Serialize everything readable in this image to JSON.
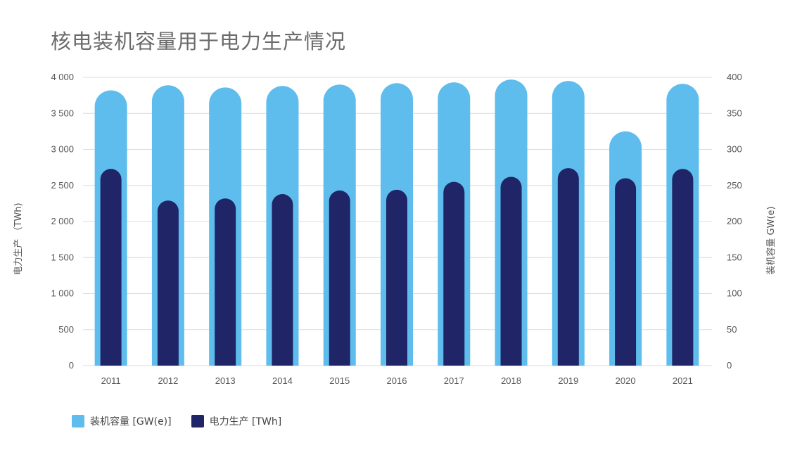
{
  "title": "核电装机容量用于电力生产情况",
  "colors": {
    "capacity": "#5ebdec",
    "production": "#1f2566",
    "grid": "#dcdcdc"
  },
  "legend": {
    "capacity_label": "装机容量 [GW(e)]",
    "production_label": "电力生产 [TWh]"
  },
  "chart_data": {
    "type": "bar",
    "categories": [
      "2011",
      "2012",
      "2013",
      "2014",
      "2015",
      "2016",
      "2017",
      "2018",
      "2019",
      "2020",
      "2021"
    ],
    "series": [
      {
        "name": "装机容量 [GW(e)]",
        "axis": "right",
        "values": [
          382,
          389,
          386,
          388,
          390,
          392,
          393,
          397,
          395,
          325,
          391
        ]
      },
      {
        "name": "电力生产 [TWh]",
        "axis": "left",
        "values": [
          2730,
          2290,
          2320,
          2380,
          2430,
          2440,
          2550,
          2620,
          2740,
          2600,
          2730
        ]
      }
    ],
    "ylabel_left": "电力生产 （TWh)",
    "ylabel_right": "装机容量 GW(e)",
    "ylim_left": [
      0,
      4000
    ],
    "ylim_right": [
      0,
      400
    ],
    "yticks_left": [
      "0",
      "500",
      "1 000",
      "1 500",
      "2 000",
      "2 500",
      "3 000",
      "3 500",
      "4 000"
    ],
    "yticks_right": [
      "0",
      "50",
      "100",
      "150",
      "200",
      "250",
      "300",
      "350",
      "400"
    ],
    "grid": true,
    "legend_position": "bottom-left"
  }
}
